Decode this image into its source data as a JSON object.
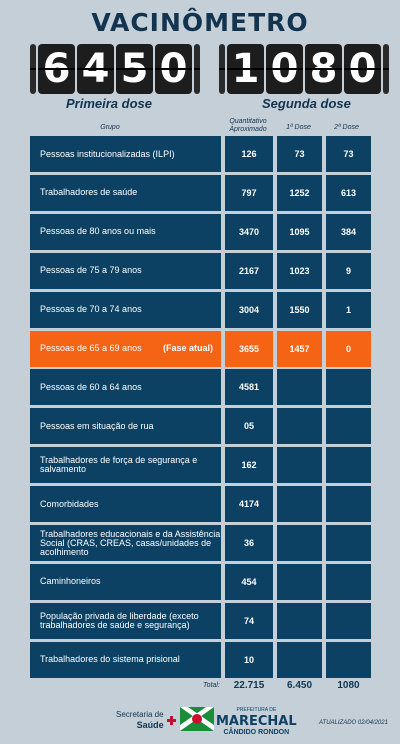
{
  "title": "VACINÔMETRO",
  "first_dose": {
    "digits": [
      "6",
      "4",
      "5",
      "0"
    ],
    "label": "Primeira dose"
  },
  "second_dose": {
    "digits": [
      "1",
      "0",
      "8",
      "0"
    ],
    "label": "Segunda dose"
  },
  "headers": {
    "grupo": "Grupo",
    "quantitativo": "Quantitativo Aproximado",
    "dose1": "1ª Dose",
    "dose2": "2ª Dose"
  },
  "rows": [
    {
      "group": "Pessoas institucionalizadas (ILPI)",
      "quant": "126",
      "d1": "73",
      "d2": "73"
    },
    {
      "group": "Trabalhadores de saúde",
      "quant": "797",
      "d1": "1252",
      "d2": "613"
    },
    {
      "group": "Pessoas de 80 anos ou mais",
      "quant": "3470",
      "d1": "1095",
      "d2": "384"
    },
    {
      "group": "Pessoas de 75 a 79 anos",
      "quant": "2167",
      "d1": "1023",
      "d2": "9"
    },
    {
      "group": "Pessoas de 70 a 74 anos",
      "quant": "3004",
      "d1": "1550",
      "d2": "1"
    },
    {
      "group": "Pessoas de 65 a 69 anos",
      "tag": "(Fase atual)",
      "quant": "3655",
      "d1": "1457",
      "d2": "0"
    },
    {
      "group": "Pessoas de 60 a 64 anos",
      "quant": "4581",
      "d1": "",
      "d2": ""
    },
    {
      "group": "Pessoas em situação de rua",
      "quant": "05",
      "d1": "",
      "d2": ""
    },
    {
      "group": "Trabalhadores de força de segurança e salvamento",
      "quant": "162",
      "d1": "",
      "d2": ""
    },
    {
      "group": "Comorbidades",
      "quant": "4174",
      "d1": "",
      "d2": ""
    },
    {
      "group": "Trabalhadores educacionais e da Assistência Social (CRAS, CREAS, casas/unidades de acolhimento",
      "quant": "36",
      "d1": "",
      "d2": ""
    },
    {
      "group": "Caminhoneiros",
      "quant": "454",
      "d1": "",
      "d2": ""
    },
    {
      "group": "População privada de liberdade (exceto trabalhadores de saúde e segurança)",
      "quant": "74",
      "d1": "",
      "d2": ""
    },
    {
      "group": "Trabalhadores do sistema prisional",
      "quant": "10",
      "d1": "",
      "d2": ""
    }
  ],
  "totals": {
    "label": "Total:",
    "quant": "22.715",
    "d1": "6.450",
    "d2": "1080"
  },
  "footer": {
    "secretaria": "Secretaria de",
    "saude": "Saúde",
    "prefeitura": "PREFEITURA DE",
    "city": "MARECHAL",
    "city2": "CÂNDIDO RONDON",
    "updated": "ATUALIZADO 02/04/2021"
  },
  "colors": {
    "background": "#c4cfd8",
    "cell": "#0c4163",
    "current": "#f56314",
    "text": "#12344f"
  }
}
